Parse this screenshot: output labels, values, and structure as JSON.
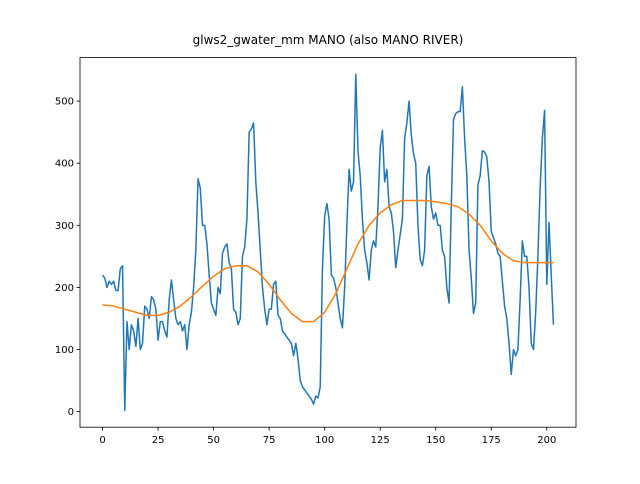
{
  "chart_data": {
    "type": "line",
    "title": "glws2_gwater_mm MANO (also MANO RIVER)",
    "xlim": [
      -10.15,
      213.15
    ],
    "xticks": [
      0,
      25,
      50,
      75,
      100,
      125,
      150,
      175,
      200
    ],
    "ylim": [
      -25.05,
      570.05
    ],
    "yticks": [
      0,
      100,
      200,
      300,
      400,
      500
    ],
    "series": [
      {
        "color": "#1f77b4",
        "x": [
          0,
          1,
          2,
          3,
          4,
          5,
          6,
          7,
          8,
          9,
          10,
          11,
          12,
          13,
          14,
          15,
          16,
          17,
          18,
          19,
          20,
          21,
          22,
          23,
          24,
          25,
          26,
          27,
          28,
          29,
          30,
          31,
          32,
          33,
          34,
          35,
          36,
          37,
          38,
          39,
          40,
          41,
          42,
          43,
          44,
          45,
          46,
          47,
          48,
          49,
          50,
          51,
          52,
          53,
          54,
          55,
          56,
          57,
          58,
          59,
          60,
          61,
          62,
          63,
          64,
          65,
          66,
          67,
          68,
          69,
          70,
          71,
          72,
          73,
          74,
          75,
          76,
          77,
          78,
          79,
          80,
          81,
          82,
          83,
          84,
          85,
          86,
          87,
          88,
          89,
          90,
          91,
          92,
          93,
          94,
          95,
          96,
          97,
          98,
          99,
          100,
          101,
          102,
          103,
          104,
          105,
          106,
          107,
          108,
          109,
          110,
          111,
          112,
          113,
          114,
          115,
          116,
          117,
          118,
          119,
          120,
          121,
          122,
          123,
          124,
          125,
          126,
          127,
          128,
          129,
          130,
          131,
          132,
          133,
          134,
          135,
          136,
          137,
          138,
          139,
          140,
          141,
          142,
          143,
          144,
          145,
          146,
          147,
          148,
          149,
          150,
          151,
          152,
          153,
          154,
          155,
          156,
          157,
          158,
          159,
          160,
          161,
          162,
          163,
          164,
          165,
          166,
          167,
          168,
          169,
          170,
          171,
          172,
          173,
          174,
          175,
          176,
          177,
          178,
          179,
          180,
          181,
          182,
          183,
          184,
          185,
          186,
          187,
          188,
          189,
          190,
          191,
          192,
          193,
          194,
          195,
          196,
          197,
          198,
          199,
          200,
          201,
          202,
          203
        ],
        "values": [
          220,
          215,
          200,
          210,
          205,
          210,
          195,
          195,
          230,
          235,
          2,
          145,
          100,
          140,
          130,
          105,
          150,
          100,
          110,
          170,
          165,
          150,
          185,
          180,
          165,
          115,
          145,
          145,
          130,
          120,
          180,
          212,
          180,
          150,
          140,
          145,
          130,
          140,
          100,
          140,
          160,
          200,
          260,
          375,
          360,
          300,
          300,
          270,
          220,
          175,
          165,
          155,
          200,
          190,
          255,
          265,
          270,
          240,
          230,
          165,
          160,
          140,
          150,
          250,
          265,
          310,
          450,
          455,
          465,
          370,
          320,
          260,
          200,
          165,
          140,
          165,
          165,
          205,
          210,
          155,
          150,
          130,
          125,
          120,
          115,
          110,
          90,
          110,
          85,
          50,
          40,
          35,
          30,
          25,
          20,
          12,
          25,
          22,
          40,
          230,
          315,
          335,
          310,
          220,
          215,
          200,
          175,
          150,
          135,
          200,
          300,
          390,
          355,
          370,
          543,
          420,
          380,
          310,
          260,
          240,
          212,
          260,
          275,
          265,
          330,
          425,
          453,
          370,
          390,
          330,
          320,
          290,
          232,
          260,
          285,
          310,
          440,
          465,
          500,
          445,
          415,
          400,
          300,
          245,
          235,
          260,
          380,
          395,
          330,
          310,
          320,
          300,
          300,
          260,
          250,
          200,
          175,
          330,
          470,
          480,
          483,
          483,
          523,
          440,
          380,
          260,
          215,
          158,
          175,
          365,
          380,
          420,
          418,
          410,
          370,
          290,
          280,
          270,
          255,
          250,
          210,
          170,
          150,
          110,
          60,
          100,
          90,
          100,
          180,
          275,
          250,
          250,
          200,
          110,
          100,
          160,
          250,
          360,
          440,
          485,
          205,
          305,
          220,
          140
        ]
      },
      {
        "color": "#ff7f0e",
        "x": [
          0,
          5,
          10,
          15,
          20,
          25,
          30,
          35,
          40,
          45,
          50,
          55,
          60,
          65,
          70,
          75,
          80,
          85,
          90,
          95,
          100,
          105,
          110,
          115,
          120,
          125,
          130,
          135,
          140,
          145,
          150,
          155,
          160,
          165,
          170,
          175,
          180,
          185,
          190,
          195,
          200,
          203
        ],
        "values": [
          172,
          170,
          165,
          160,
          155,
          155,
          160,
          170,
          185,
          202,
          218,
          230,
          235,
          235,
          225,
          205,
          180,
          158,
          145,
          145,
          160,
          190,
          230,
          270,
          300,
          320,
          333,
          340,
          340,
          340,
          338,
          335,
          330,
          318,
          300,
          275,
          255,
          243,
          240,
          240,
          240,
          240
        ]
      }
    ]
  }
}
